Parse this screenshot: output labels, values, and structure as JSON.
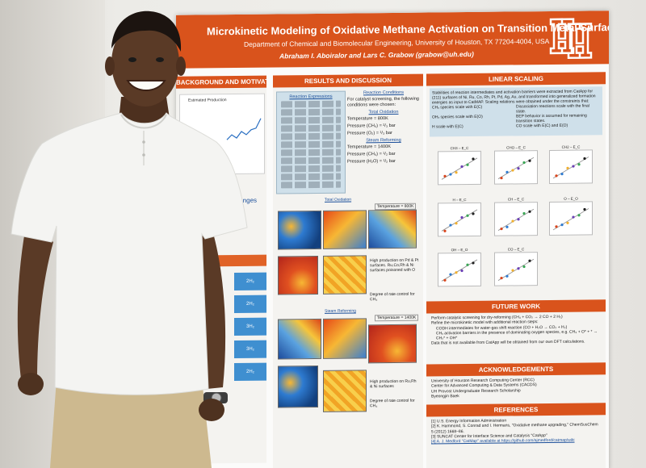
{
  "poster": {
    "title": "Microkinetic Modeling of Oxidative Methane Activation on Transition Metal Surfaces",
    "department": "Department of Chemical and Biomolecular Engineering, University of Houston, TX 77204-4004, USA",
    "authors": "Abraham I. Aboiralor and Lars C. Grabow (grabow@uh.edu)",
    "colors": {
      "banner": "#d9531c",
      "accent_blue": "#1a4e9a"
    },
    "logo_icon": "uh-logo",
    "sections": {
      "background": "BACKGROUND AND MOTIVATION",
      "results": "RESULTS AND DISCUSSION",
      "linear": "LINEAR SCALING",
      "future": "FUTURE WORK",
      "ack": "ACKNOWLEDGEMENTS",
      "refs": "REFERENCES"
    },
    "background_plot_caption": "Estimated Production",
    "left_column_fragments": [
      "Challenges",
      "2H₂",
      "2H₂",
      "3H₂",
      "3H₂",
      "2H₂"
    ],
    "reaction_expressions_title": "Reaction Expressions",
    "reaction_conditions": {
      "title": "Reaction Conditions",
      "intro": "For catalyst screening, the following conditions were chosen:",
      "total_oxidation_title": "Total Oxidation",
      "total_oxidation": [
        "Temperature = 800K",
        "Pressure (CH₄) = ²/₃ bar",
        "Pressure (O₂) = ¹/₃ bar"
      ],
      "steam_reforming_title": "Steam Reforming",
      "steam_reforming": [
        "Temperature = 1400K",
        "Pressure (CH₄) = ¹/₂ bar",
        "Pressure (H₂O) = ¹/₂ bar"
      ]
    },
    "plot_labels": {
      "total_oxidation": "Total Oxidation",
      "temp_800": "Temperature = 800K",
      "steam_reforming": "Steam Reforming",
      "temp_1400": "Temperature = 1400K"
    },
    "result_notes": [
      "High production on Pd & Pt surfaces. Ru,Co,Rh & Ni surfaces poisoned with O",
      "Degree of rate control for CH₄",
      "High production on Ru,Rh & Ni surfaces",
      "Degree of rate control for CH₄"
    ],
    "linear_scaling_text": "Stabilities of reaction intermediates and activation barriers were extracted from CatApp for (211) surfaces of Ni, Ru, Co, Rh, Pt, Pd, Ag, Au, and transformed into generalized formation energies as input to CatMAP. Scaling relations were obtained under the constraints that:",
    "linear_bullets": [
      "CHₓ species scale with E(C)",
      "OHₓ species scale with E(O)",
      "H scale with E(C)",
      "CO scale with E(C) and E(O)",
      "Dissociation reactions scale with the final state.",
      "BEP behavior is assumed for remaining transition states."
    ],
    "scaling_plot_titles": [
      "CH3 – E_C",
      "CHO – E_C",
      "CH2 – E_C",
      "H – E_C",
      "CH – E_C",
      "O – E_O",
      "OH – E_O",
      "CO – E_C"
    ],
    "future_work": [
      "Perform catalytic screening for dry-reforming (CH₄ + CO₂ → 2 CO + 2 H₂)",
      "Refine the microkinetic model with additional reaction steps:",
      "CODH intermediates for water-gas shift reaction (CO + H₂O → CO₂ + H₂)",
      "CHₓ activation barriers in the presence of dominating oxygen species, e.g. CH₃ + O* + * → CH₂* + OH*",
      "Data that is not available from CatApp will be obtained from our own DFT calculations."
    ],
    "acknowledgements": [
      "University of Houston Research Computing Center (RCC)",
      "Center for Advanced Computing & Data Systems (CACDS)",
      "UH Provost Undergraduate Research Scholarship",
      "Byeongjin Baek"
    ],
    "references": [
      "[1] U.S. Energy Information Administration",
      "[2] K. Hammond, S. Conrad and I. Hermans, \"Oxidative methane upgrading,\" ChemSusChem 5 (2012) 1668–86.",
      "[3] SUNCAT Center for Interface Science and Catalysis \"CatApp\"",
      "[4] A. J. Medford \"CatMap\" available at https://github.com/ajmedford/catmap/wiki"
    ]
  },
  "person": {
    "shirt_color": "#f4f4f2",
    "pants_color": "#cdb98f",
    "watch_icon": "wristwatch-icon"
  }
}
